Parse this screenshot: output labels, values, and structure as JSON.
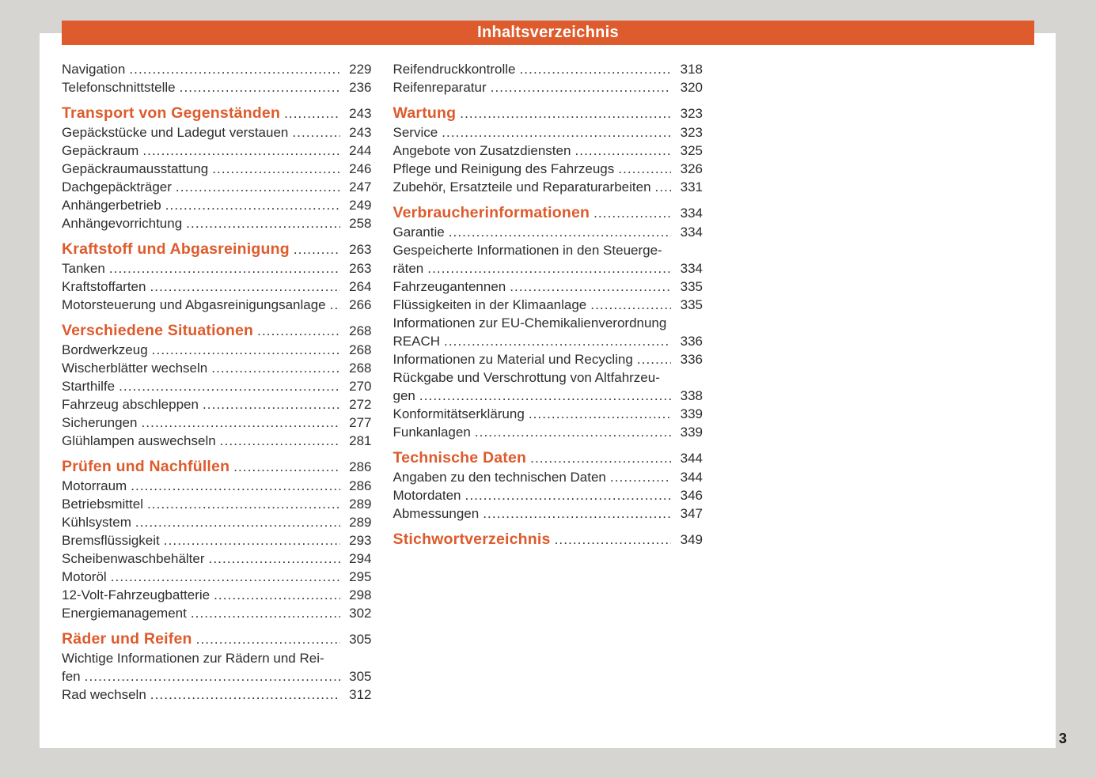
{
  "header": {
    "title": "Inhaltsverzeichnis"
  },
  "footer": {
    "page_number": "3"
  },
  "colors": {
    "accent": "#DD5B2C",
    "canvas_background": "#D6D5D2",
    "page_background": "#FFFFFF",
    "text": "#2E2E2E",
    "header_text": "#FFFFFF"
  },
  "toc": {
    "columns": [
      {
        "blocks": [
          {
            "heading": null,
            "items": [
              {
                "label": "Navigation",
                "page": "229"
              },
              {
                "label": "Telefonschnittstelle",
                "page": "236"
              }
            ]
          },
          {
            "heading": {
              "label": "Transport von Gegenständen",
              "page": "243"
            },
            "items": [
              {
                "label": "Gepäckstücke und Ladegut verstauen",
                "page": "243"
              },
              {
                "label": "Gepäckraum",
                "page": "244"
              },
              {
                "label": "Gepäckraumausstattung",
                "page": "246"
              },
              {
                "label": "Dachgepäckträger",
                "page": "247"
              },
              {
                "label": "Anhängerbetrieb",
                "page": "249"
              },
              {
                "label": "Anhängevorrichtung",
                "page": "258"
              }
            ]
          },
          {
            "heading": {
              "label": "Kraftstoff und Abgasreinigung",
              "page": "263"
            },
            "items": [
              {
                "label": "Tanken",
                "page": "263"
              },
              {
                "label": "Kraftstoffarten",
                "page": "264"
              },
              {
                "label": "Motorsteuerung und Abgasreinigungsanlage",
                "page": "266"
              }
            ]
          },
          {
            "heading": {
              "label": "Verschiedene Situationen",
              "page": "268"
            },
            "items": [
              {
                "label": "Bordwerkzeug",
                "page": "268"
              },
              {
                "label": "Wischerblätter wechseln",
                "page": "268"
              },
              {
                "label": "Starthilfe",
                "page": "270"
              },
              {
                "label": "Fahrzeug abschleppen",
                "page": "272"
              },
              {
                "label": "Sicherungen",
                "page": "277"
              },
              {
                "label": "Glühlampen auswechseln",
                "page": "281"
              }
            ]
          },
          {
            "heading": {
              "label": "Prüfen und Nachfüllen",
              "page": "286"
            },
            "items": [
              {
                "label": "Motorraum",
                "page": "286"
              },
              {
                "label": "Betriebsmittel",
                "page": "289"
              },
              {
                "label": "Kühlsystem",
                "page": "289"
              },
              {
                "label": "Bremsflüssigkeit",
                "page": "293"
              },
              {
                "label": "Scheibenwaschbehälter",
                "page": "294"
              },
              {
                "label": "Motoröl",
                "page": "295"
              },
              {
                "label": "12-Volt-Fahrzeugbatterie",
                "page": "298"
              },
              {
                "label": "Energiemanagement",
                "page": "302"
              }
            ]
          },
          {
            "heading": {
              "label": "Räder und Reifen",
              "page": "305"
            },
            "items": [
              {
                "lines": [
                  "Wichtige Informationen zur Rädern und Rei-",
                  "fen"
                ],
                "page": "305"
              },
              {
                "label": "Rad wechseln",
                "page": "312"
              }
            ]
          }
        ]
      },
      {
        "blocks": [
          {
            "heading": null,
            "items": [
              {
                "label": "Reifendruckkontrolle",
                "page": "318"
              },
              {
                "label": "Reifenreparatur",
                "page": "320"
              }
            ]
          },
          {
            "heading": {
              "label": "Wartung",
              "page": "323"
            },
            "items": [
              {
                "label": "Service",
                "page": "323"
              },
              {
                "label": "Angebote von Zusatzdiensten",
                "page": "325"
              },
              {
                "label": "Pflege und Reinigung des Fahrzeugs",
                "page": "326"
              },
              {
                "label": "Zubehör, Ersatzteile und Reparaturarbeiten",
                "page": "331"
              }
            ]
          },
          {
            "heading": {
              "label": "Verbraucherinformationen",
              "page": "334"
            },
            "items": [
              {
                "label": "Garantie",
                "page": "334"
              },
              {
                "lines": [
                  "Gespeicherte Informationen in den Steuerge-",
                  "räten"
                ],
                "page": "334"
              },
              {
                "label": "Fahrzeugantennen",
                "page": "335"
              },
              {
                "label": "Flüssigkeiten in der Klimaanlage",
                "page": "335"
              },
              {
                "lines": [
                  "Informationen zur EU-Chemikalienverordnung",
                  "REACH"
                ],
                "page": "336"
              },
              {
                "label": "Informationen zu Material und Recycling",
                "page": "336"
              },
              {
                "lines": [
                  "Rückgabe und Verschrottung von Altfahrzeu-",
                  "gen"
                ],
                "page": "338"
              },
              {
                "label": "Konformitätserklärung",
                "page": "339"
              },
              {
                "label": "Funkanlagen",
                "page": "339"
              }
            ]
          },
          {
            "heading": {
              "label": "Technische Daten",
              "page": "344"
            },
            "items": [
              {
                "label": "Angaben zu den technischen Daten",
                "page": "344"
              },
              {
                "label": "Motordaten",
                "page": "346"
              },
              {
                "label": "Abmessungen",
                "page": "347"
              }
            ]
          },
          {
            "heading": {
              "label": "Stichwortverzeichnis",
              "page": "349"
            },
            "items": []
          }
        ]
      }
    ]
  }
}
